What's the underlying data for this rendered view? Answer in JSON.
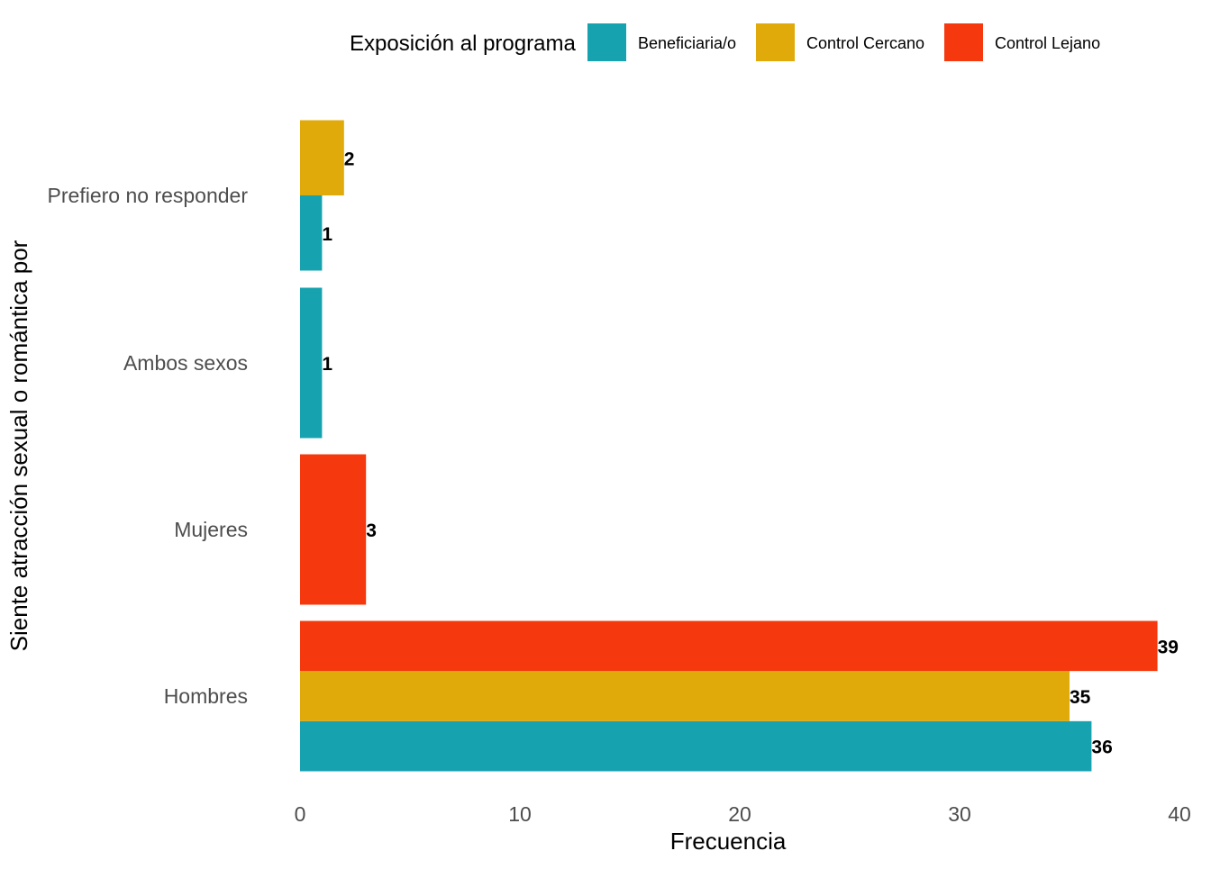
{
  "chart_data": {
    "type": "bar",
    "orientation": "horizontal",
    "categories": [
      "Hombres",
      "Mujeres",
      "Ambos sexos",
      "Prefiero no responder"
    ],
    "series": [
      {
        "name": "Beneficiaria/o",
        "color": "#17A2B0",
        "values": [
          36,
          null,
          1,
          1
        ]
      },
      {
        "name": "Control Cercano",
        "color": "#E0AA0A",
        "values": [
          35,
          null,
          null,
          2
        ]
      },
      {
        "name": "Control Lejano",
        "color": "#F5380D",
        "values": [
          39,
          3,
          null,
          null
        ]
      }
    ],
    "xlabel": "Frecuencia",
    "ylabel": "Siente atracción sexual o romántica por",
    "xlim": [
      0,
      40
    ],
    "xticks": [
      0,
      10,
      20,
      30,
      40
    ],
    "legend_title": "Exposición al programa",
    "legend_position": "top",
    "grid": false,
    "data_labels": true
  }
}
